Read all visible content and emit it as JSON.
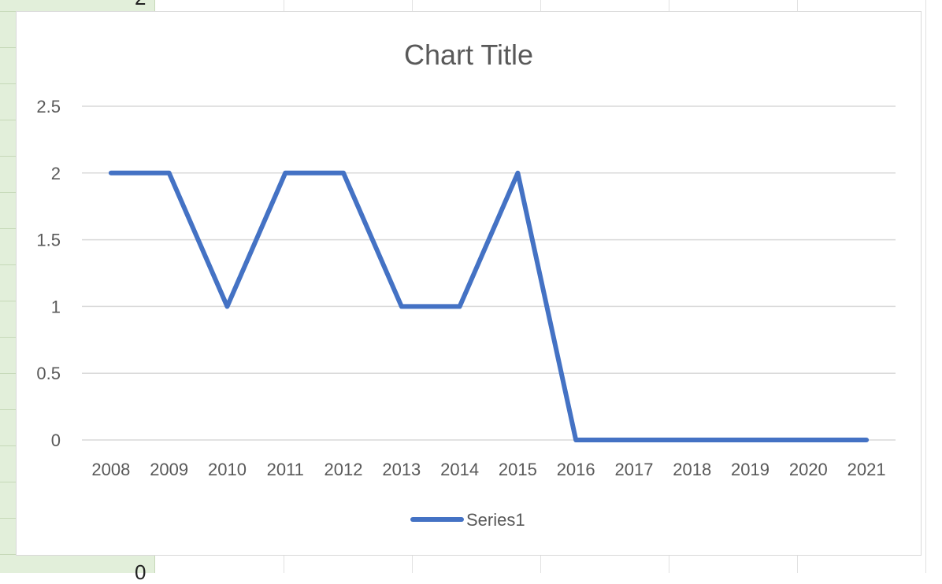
{
  "sheet": {
    "visible_cells": [
      "2",
      "0"
    ]
  },
  "chart_data": {
    "type": "line",
    "title": "Chart Title",
    "xlabel": "",
    "ylabel": "",
    "categories": [
      "2008",
      "2009",
      "2010",
      "2011",
      "2012",
      "2013",
      "2014",
      "2015",
      "2016",
      "2017",
      "2018",
      "2019",
      "2020",
      "2021"
    ],
    "series": [
      {
        "name": "Series1",
        "color": "#4472c4",
        "values": [
          2,
          2,
          1,
          2,
          2,
          1,
          1,
          2,
          0,
          0,
          0,
          0,
          0,
          0
        ]
      }
    ],
    "ylim": [
      0,
      2.5
    ],
    "yticks": [
      "0",
      "0.5",
      "1",
      "1.5",
      "2",
      "2.5"
    ],
    "ytick_values": [
      0,
      0.5,
      1,
      1.5,
      2,
      2.5
    ],
    "grid": true,
    "legend": "bottom",
    "gridline_color": "#d9d9d9"
  }
}
